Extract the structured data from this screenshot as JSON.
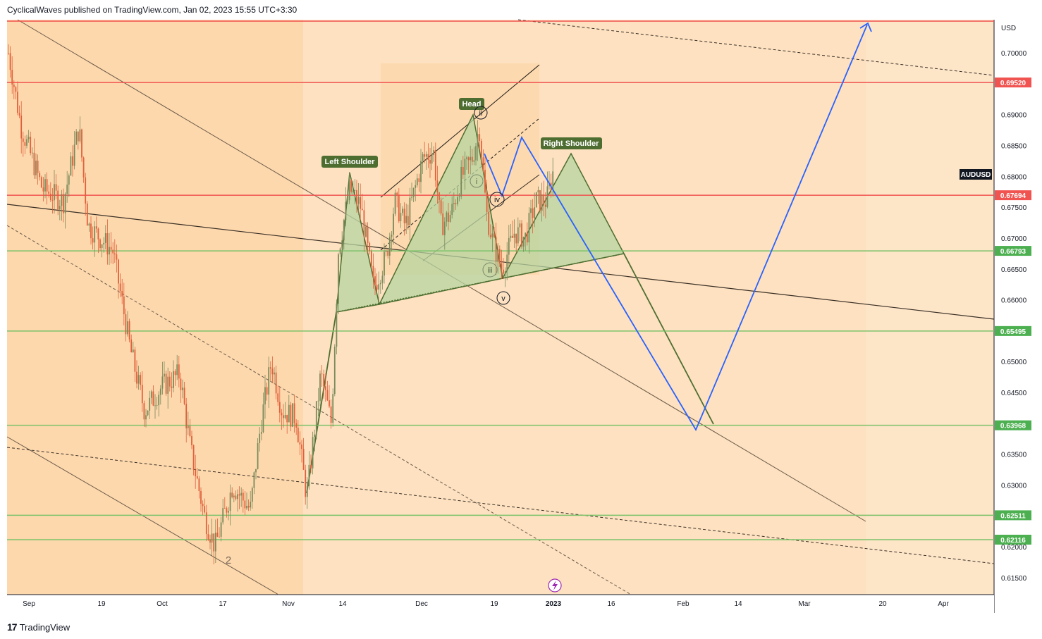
{
  "header": {
    "publisher": "CyclicalWaves published on TradingView.com, Jan 02, 2023 15:55 UTC+3:30"
  },
  "footer": {
    "brand": "TradingView",
    "logo_glyph": "17"
  },
  "symbol": "AUDUSD",
  "currency": "USD",
  "colors": {
    "background_main": "#fddcb5",
    "background_light": "#fdd9b0",
    "red_line": "#f05350",
    "green_line": "#7cc26a",
    "green_badge": "#4caf50",
    "red_badge": "#f05350",
    "blue_projection": "#2962ff",
    "pattern_fill": "#b5d4a0",
    "pattern_stroke": "#4e6e31",
    "label_badge": "#4e6e31",
    "candle_up": "#26a69a",
    "candle_down": "#ef5350"
  },
  "annotations": {
    "left_shoulder": "Left Shoulder",
    "head": "Head",
    "right_shoulder": "Right Shoulder",
    "waves": [
      "i",
      "ii",
      "iii",
      "iv",
      "v"
    ],
    "wave_2": "2"
  },
  "chart_data": {
    "type": "candlestick",
    "title": "AUDUSD",
    "ylim": [
      0.61,
      0.705
    ],
    "y_ticks": [
      "0.70000",
      "0.69500",
      "0.69000",
      "0.68500",
      "0.68000",
      "0.67500",
      "0.67000",
      "0.66500",
      "0.66000",
      "0.65500",
      "0.65000",
      "0.64500",
      "0.64000",
      "0.63500",
      "0.63000",
      "0.62500",
      "0.62000",
      "0.61500"
    ],
    "x_ticks": [
      "Sep",
      "19",
      "Oct",
      "17",
      "Nov",
      "14",
      "Dec",
      "19",
      "2023",
      "16",
      "Feb",
      "14",
      "Mar",
      "20",
      "Apr"
    ],
    "horizontal_levels": [
      {
        "value": 0.7055,
        "color": "red",
        "label": ""
      },
      {
        "value": 0.6952,
        "color": "red",
        "label": "0.69520"
      },
      {
        "value": 0.67694,
        "color": "red",
        "label": "0.67694"
      },
      {
        "value": 0.66793,
        "color": "green",
        "label": "0.66793"
      },
      {
        "value": 0.65495,
        "color": "green",
        "label": "0.65495"
      },
      {
        "value": 0.63968,
        "color": "green",
        "label": "0.63968"
      },
      {
        "value": 0.62511,
        "color": "green",
        "label": "0.62511"
      },
      {
        "value": 0.62116,
        "color": "green",
        "label": "0.62116"
      }
    ],
    "symbol_badge": "AUDUSD",
    "price_series_approx": [
      {
        "date": "Sep",
        "close": 0.69
      },
      {
        "date": "19",
        "close": 0.675
      },
      {
        "date": "Oct",
        "close": 0.645
      },
      {
        "date": "17",
        "close": 0.622
      },
      {
        "date": "Nov",
        "close": 0.645
      },
      {
        "date": "Nov-10",
        "close": 0.628
      },
      {
        "date": "14",
        "close": 0.68
      },
      {
        "date": "Dec",
        "close": 0.685
      },
      {
        "date": "Dec-14",
        "close": 0.69
      },
      {
        "date": "19",
        "close": 0.667
      },
      {
        "date": "2023",
        "close": 0.68
      }
    ]
  }
}
